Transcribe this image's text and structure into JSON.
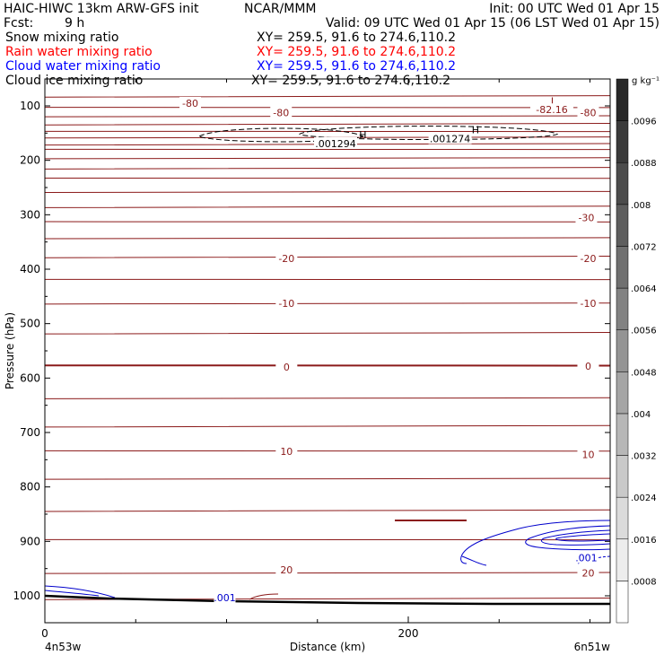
{
  "header": {
    "title": "HAIC-HIWC 13km ARW-GFS init",
    "center": "NCAR/MMM",
    "init": "Init: 00 UTC Wed 01 Apr 15",
    "fcst_label": "Fcst:",
    "fcst_value": "9 h",
    "valid": "Valid: 09 UTC Wed 01 Apr 15 (06 LST Wed 01 Apr 15)"
  },
  "fields": [
    {
      "name": "Snow mixing ratio",
      "xy": "XY= 259.5, 91.6 to 274.6,110.2",
      "color": "#000000"
    },
    {
      "name": "Rain water mixing ratio",
      "xy": "XY= 259.5, 91.6 to 274.6,110.2",
      "color": "#ff0000"
    },
    {
      "name": "Cloud water mixing ratio",
      "xy": "XY= 259.5, 91.6 to 274.6,110.2",
      "color": "#0000ff"
    },
    {
      "name": "Cloud ice mixing ratio",
      "xy": "XY= 259.5, 91.6 to 274.6,110.2",
      "color": "#000000"
    }
  ],
  "colors": {
    "temperature": "#8b1a1a",
    "cloud_water": "#0000cc",
    "cloud_ice": "#000000",
    "terrain": "#000000"
  },
  "chart_data": {
    "type": "contour",
    "ylabel": "Pressure (hPa)",
    "xlabel": "Distance (km)",
    "x_ticks": [
      0,
      200
    ],
    "y_ticks": [
      100,
      200,
      300,
      400,
      500,
      600,
      700,
      800,
      900,
      1000
    ],
    "xlim": [
      0,
      310
    ],
    "ylim": [
      1050,
      50
    ],
    "endpoint_labels": {
      "left": "4n53w",
      "right": "6n51w"
    },
    "colorbar": {
      "unit": "g kg⁻¹",
      "levels": [
        ".0008",
        ".0016",
        ".0024",
        ".0032",
        ".004",
        ".0048",
        ".0056",
        ".0064",
        ".0072",
        ".008",
        ".0088",
        ".0096"
      ]
    },
    "temperature_contour_labels": [
      {
        "text": "-80",
        "x": 80,
        "p": 95
      },
      {
        "text": "-80",
        "x": 130,
        "p": 112
      },
      {
        "text": "-80",
        "x": 299,
        "p": 112
      },
      {
        "text": "-30",
        "x": 298,
        "p": 305
      },
      {
        "text": "-20",
        "x": 133,
        "p": 380
      },
      {
        "text": "-20",
        "x": 299,
        "p": 380
      },
      {
        "text": "-10",
        "x": 133,
        "p": 463
      },
      {
        "text": "-10",
        "x": 299,
        "p": 463
      },
      {
        "text": "0",
        "x": 133,
        "p": 580
      },
      {
        "text": "0",
        "x": 299,
        "p": 578
      },
      {
        "text": "10",
        "x": 133,
        "p": 735
      },
      {
        "text": "10",
        "x": 299,
        "p": 740
      },
      {
        "text": "20",
        "x": 133,
        "p": 952
      },
      {
        "text": "20",
        "x": 299,
        "p": 958
      }
    ],
    "extrema": [
      {
        "text": "L",
        "x": 280,
        "p": 91
      },
      {
        "text": "-82.16",
        "x": 279,
        "p": 107
      },
      {
        "text": "H",
        "x": 175,
        "p": 153
      },
      {
        "text": ".001294",
        "x": 160,
        "p": 169
      },
      {
        "text": "H",
        "x": 237,
        "p": 144
      },
      {
        "text": ".001274",
        "x": 223,
        "p": 160
      }
    ],
    "cloud_water_labels": [
      {
        "text": ".001",
        "x": 99,
        "p": 1003
      },
      {
        "text": ".001",
        "x": 298,
        "p": 930
      }
    ],
    "temperature_isotherms_p": [
      82,
      104,
      119,
      133,
      148,
      158,
      170,
      181,
      196,
      214,
      234,
      258,
      285,
      314,
      343,
      377,
      420,
      463,
      517,
      578,
      637,
      688,
      735,
      785,
      843,
      898,
      958,
      1005
    ],
    "cloud_ice_highs": [
      {
        "x": [
          85,
          175
        ],
        "p": 156
      },
      {
        "x": [
          140,
          282
        ],
        "p": 152
      }
    ]
  }
}
